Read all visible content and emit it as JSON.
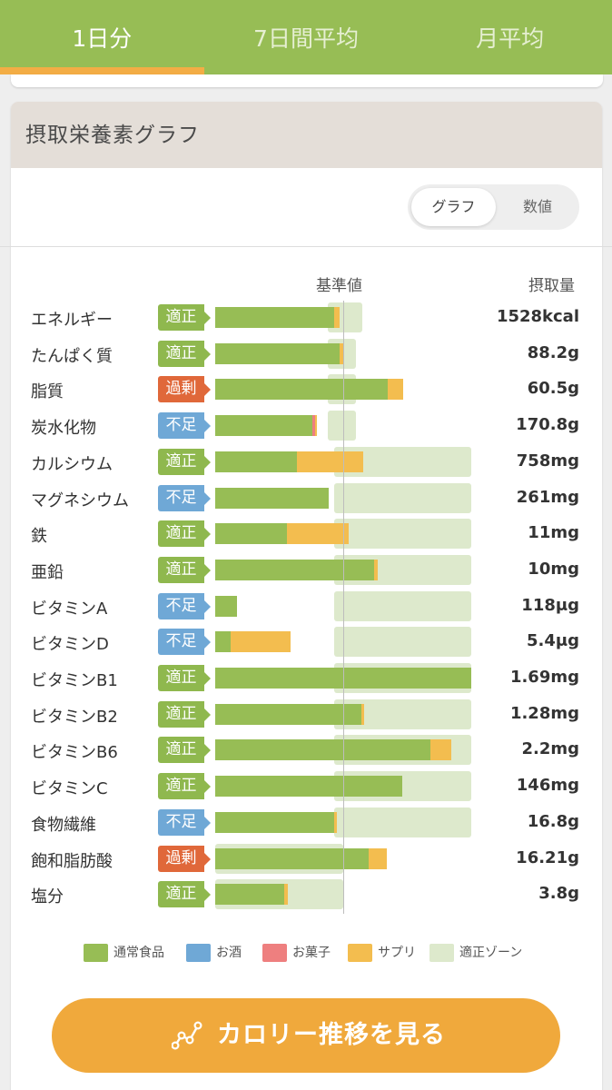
{
  "tabs": [
    {
      "label": "1日分",
      "active": true
    },
    {
      "label": "7日間平均",
      "active": false
    },
    {
      "label": "月平均",
      "active": false
    }
  ],
  "card": {
    "title": "摂取栄養素グラフ",
    "toggle": {
      "graph_label": "グラフ",
      "numeric_label": "数値",
      "selected": "グラフ"
    },
    "column_headers": {
      "reference": "基準値",
      "intake": "摂取量"
    }
  },
  "colors": {
    "normal_food": "#97bd55",
    "alcohol": "#6fa8d6",
    "snacks": "#ee7f7f",
    "supplement": "#f3bd4f",
    "proper_zone": "#dde9cc",
    "status_ok": "#8fb84e",
    "status_low": "#6fa8d6",
    "status_high": "#e0683a"
  },
  "nutrients": [
    {
      "name": "エネルギー",
      "status": "適正",
      "status_type": "ok",
      "value": "1528kcal",
      "zone": [
        95,
        115
      ],
      "food": 93,
      "snack": 0,
      "supplement": 4
    },
    {
      "name": "たんぱく質",
      "status": "適正",
      "status_type": "ok",
      "value": "88.2g",
      "zone": [
        95,
        110
      ],
      "food": 97,
      "snack": 0,
      "supplement": 3
    },
    {
      "name": "脂質",
      "status": "過剰",
      "status_type": "high",
      "value": "60.5g",
      "zone": [
        95,
        110
      ],
      "food": 135,
      "snack": 0,
      "supplement": 12
    },
    {
      "name": "炭水化物",
      "status": "不足",
      "status_type": "low",
      "value": "170.8g",
      "zone": [
        95,
        110
      ],
      "food": 76,
      "snack": 2,
      "supplement": 1
    },
    {
      "name": "カルシウム",
      "status": "適正",
      "status_type": "ok",
      "value": "758mg",
      "zone": [
        100,
        200
      ],
      "food": 64,
      "snack": 0,
      "supplement": 52
    },
    {
      "name": "マグネシウム",
      "status": "不足",
      "status_type": "low",
      "value": "261mg",
      "zone": [
        100,
        200
      ],
      "food": 89,
      "snack": 0,
      "supplement": 0
    },
    {
      "name": "鉄",
      "status": "適正",
      "status_type": "ok",
      "value": "11mg",
      "zone": [
        100,
        200
      ],
      "food": 56,
      "snack": 0,
      "supplement": 48
    },
    {
      "name": "亜鉛",
      "status": "適正",
      "status_type": "ok",
      "value": "10mg",
      "zone": [
        100,
        200
      ],
      "food": 124,
      "snack": 0,
      "supplement": 3
    },
    {
      "name": "ビタミンA",
      "status": "不足",
      "status_type": "low",
      "value": "118μg",
      "zone": [
        100,
        200
      ],
      "food": 17,
      "snack": 0,
      "supplement": 0
    },
    {
      "name": "ビタミンD",
      "status": "不足",
      "status_type": "low",
      "value": "5.4μg",
      "zone": [
        100,
        200
      ],
      "food": 12,
      "snack": 0,
      "supplement": 47
    },
    {
      "name": "ビタミンB1",
      "status": "適正",
      "status_type": "ok",
      "value": "1.69mg",
      "zone": [
        100,
        200
      ],
      "food": 200,
      "snack": 0,
      "supplement": 0
    },
    {
      "name": "ビタミンB2",
      "status": "適正",
      "status_type": "ok",
      "value": "1.28mg",
      "zone": [
        100,
        200
      ],
      "food": 114,
      "snack": 0,
      "supplement": 2
    },
    {
      "name": "ビタミンB6",
      "status": "適正",
      "status_type": "ok",
      "value": "2.2mg",
      "zone": [
        100,
        200
      ],
      "food": 168,
      "snack": 0,
      "supplement": 16
    },
    {
      "name": "ビタミンC",
      "status": "適正",
      "status_type": "ok",
      "value": "146mg",
      "zone": [
        100,
        200
      ],
      "food": 146,
      "snack": 0,
      "supplement": 0
    },
    {
      "name": "食物繊維",
      "status": "不足",
      "status_type": "low",
      "value": "16.8g",
      "zone": [
        100,
        200
      ],
      "food": 93,
      "snack": 0,
      "supplement": 2
    },
    {
      "name": "飽和脂肪酸",
      "status": "過剰",
      "status_type": "high",
      "value": "16.21g",
      "zone": [
        0,
        100
      ],
      "food": 120,
      "snack": 0,
      "supplement": 14
    },
    {
      "name": "塩分",
      "status": "適正",
      "status_type": "ok",
      "value": "3.8g",
      "zone": [
        0,
        100
      ],
      "food": 54,
      "snack": 0,
      "supplement": 3
    }
  ],
  "legend": [
    {
      "label": "通常食品",
      "key": "normal_food"
    },
    {
      "label": "お酒",
      "key": "alcohol"
    },
    {
      "label": "お菓子",
      "key": "snacks"
    },
    {
      "label": "サプリ",
      "key": "supplement"
    },
    {
      "label": "適正ゾーン",
      "key": "proper_zone"
    }
  ],
  "cta": {
    "label": "カロリー推移を見る",
    "icon": "line-chart-icon"
  },
  "chart_data": {
    "type": "bar",
    "title": "摂取栄養素グラフ",
    "xlabel": "基準値",
    "ylabel": "摂取量",
    "orientation": "horizontal",
    "stacked": true,
    "unit": "% of reference (基準値 = 100)",
    "categories": [
      "エネルギー",
      "たんぱく質",
      "脂質",
      "炭水化物",
      "カルシウム",
      "マグネシウム",
      "鉄",
      "亜鉛",
      "ビタミンA",
      "ビタミンD",
      "ビタミンB1",
      "ビタミンB2",
      "ビタミンB6",
      "ビタミンC",
      "食物繊維",
      "飽和脂肪酸",
      "塩分"
    ],
    "series": [
      {
        "name": "通常食品",
        "values": [
          93,
          97,
          135,
          76,
          64,
          89,
          56,
          124,
          17,
          12,
          200,
          114,
          168,
          146,
          93,
          120,
          54
        ]
      },
      {
        "name": "お酒",
        "values": [
          0,
          0,
          0,
          0,
          0,
          0,
          0,
          0,
          0,
          0,
          0,
          0,
          0,
          0,
          0,
          0,
          0
        ]
      },
      {
        "name": "お菓子",
        "values": [
          0,
          0,
          0,
          2,
          0,
          0,
          0,
          0,
          0,
          0,
          0,
          0,
          0,
          0,
          0,
          0,
          0
        ]
      },
      {
        "name": "サプリ",
        "values": [
          4,
          3,
          12,
          1,
          52,
          0,
          48,
          3,
          0,
          47,
          0,
          2,
          16,
          0,
          2,
          14,
          3
        ]
      }
    ],
    "xlim": [
      0,
      200
    ],
    "reference_line": 100,
    "grid": false,
    "legend": "bottom"
  }
}
